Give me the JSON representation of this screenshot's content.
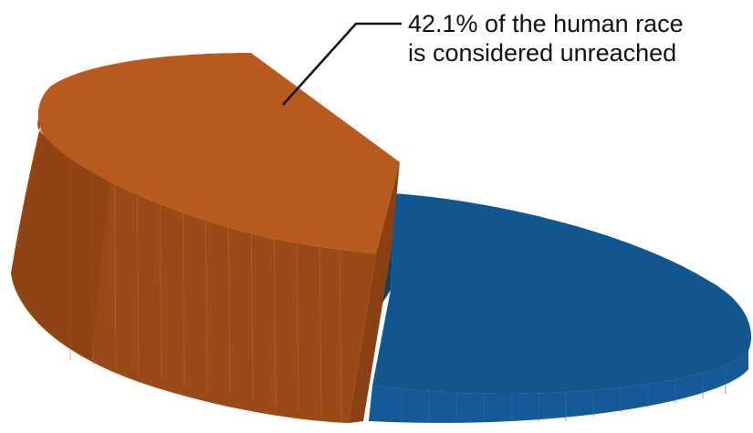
{
  "chart_data": {
    "type": "pie",
    "style": "3d-exploded",
    "slices": [
      {
        "value": 42.1,
        "color": "#b85a20",
        "side_color": "#9a4a16",
        "side_dark": "#8a4012"
      },
      {
        "value": 57.9,
        "color": "#12568f",
        "side_color": "#145a98",
        "side_dark": "#0c3f6e"
      }
    ],
    "annotation": {
      "line1": "42.1% of the human race",
      "line2": "is considered unreached"
    },
    "legend": "none",
    "grid": false
  }
}
